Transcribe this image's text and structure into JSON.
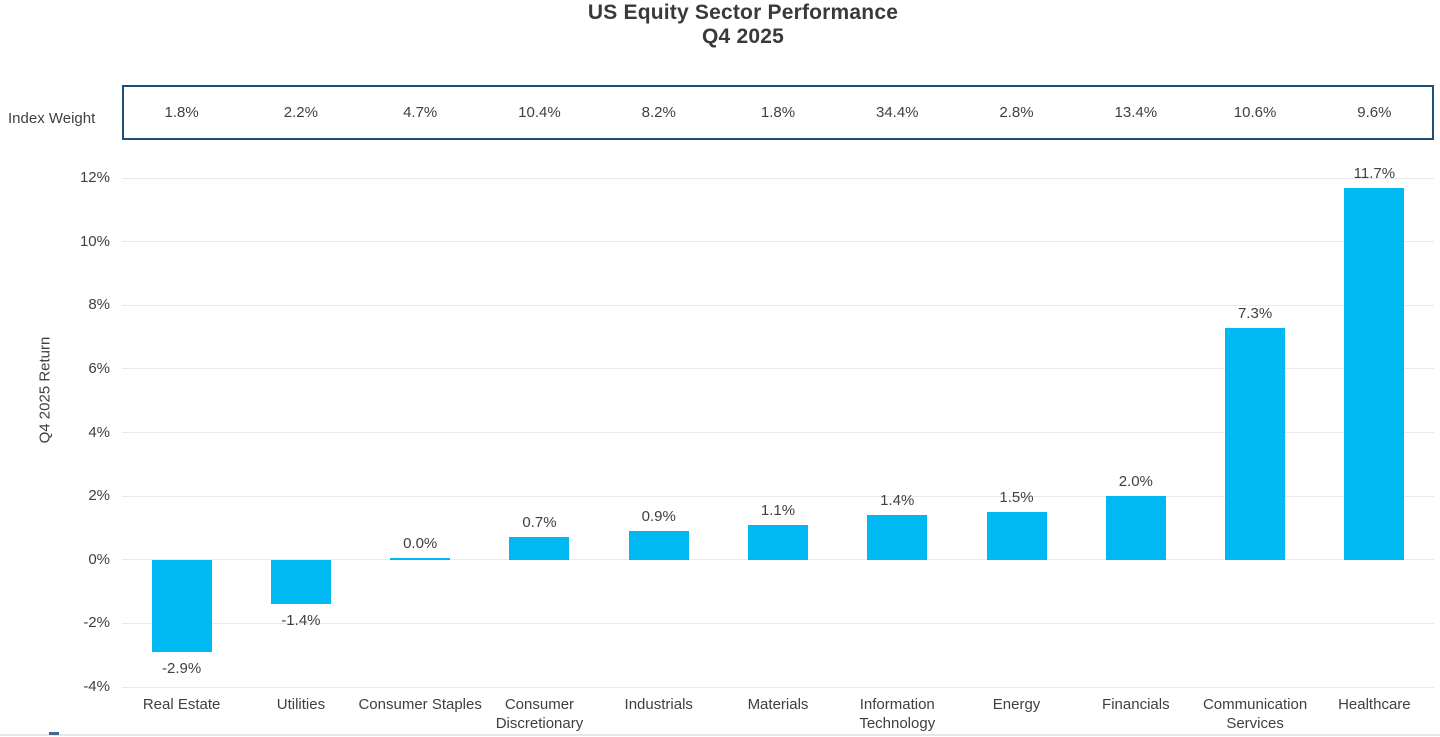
{
  "title": {
    "line1": "US Equity Sector Performance",
    "line2": "Q4 2025"
  },
  "index_weight": {
    "label": "Index Weight",
    "values": [
      "1.8%",
      "2.2%",
      "4.7%",
      "10.4%",
      "8.2%",
      "1.8%",
      "34.4%",
      "2.8%",
      "13.4%",
      "10.6%",
      "9.6%"
    ]
  },
  "chart_data": {
    "type": "bar",
    "title": "US Equity Sector Performance Q4 2025",
    "categories": [
      "Real Estate",
      "Utilities",
      "Consumer Staples",
      "Consumer Discretionary",
      "Industrials",
      "Materials",
      "Information Technology",
      "Energy",
      "Financials",
      "Communication Services",
      "Healthcare"
    ],
    "values": [
      -2.9,
      -1.4,
      0.0,
      0.7,
      0.9,
      1.1,
      1.4,
      1.5,
      2.0,
      7.3,
      11.7
    ],
    "value_labels": [
      "-2.9%",
      "-1.4%",
      "0.0%",
      "0.7%",
      "0.9%",
      "1.1%",
      "1.4%",
      "1.5%",
      "2.0%",
      "7.3%",
      "11.7%"
    ],
    "index_weights": [
      1.8,
      2.2,
      4.7,
      10.4,
      8.2,
      1.8,
      34.4,
      2.8,
      13.4,
      10.6,
      9.6
    ],
    "xlabel": "",
    "ylabel": "Q4 2025 Return",
    "ylim": [
      -4,
      12
    ],
    "yticks": [
      12,
      10,
      8,
      6,
      4,
      2,
      0,
      -2,
      -4
    ],
    "ytick_labels": [
      "12%",
      "10%",
      "8%",
      "6%",
      "4%",
      "2%",
      "0%",
      "-2%",
      "-4%"
    ],
    "grid": true,
    "legend_position": "none"
  },
  "colors": {
    "bar": "#00B9F2",
    "weight_box_border": "#1F4E79",
    "text": "#404040",
    "gridline": "#E9E9E9"
  }
}
